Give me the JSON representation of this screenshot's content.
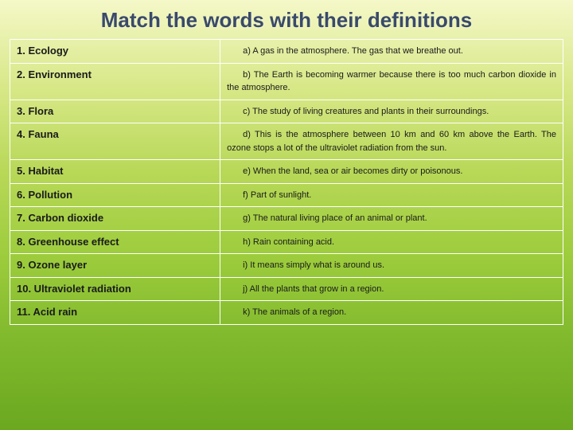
{
  "title": "Match the words with their definitions",
  "rows": [
    {
      "term": "1. Ecology",
      "def": "a) A gas in the atmosphere. The gas that we breathe out."
    },
    {
      "term": "2. Environment",
      "def": "b) The Earth is becoming warmer because there is too much carbon dioxide in the atmosphere."
    },
    {
      "term": "3. Flora",
      "def": "c) The study of living creatures and plants in their surroundings."
    },
    {
      "term": "4. Fauna",
      "def": "d) This is the atmosphere between 10 km and 60 km above the Earth. The ozone stops a lot of the ultraviolet radiation from the sun."
    },
    {
      "term": "5. Habitat",
      "def": "e) When the land, sea or air becomes dirty or poisonous."
    },
    {
      "term": "6. Pollution",
      "def": "f) Part of sunlight."
    },
    {
      "term": "7. Carbon dioxide",
      "def": "g) The natural living place of an animal or plant."
    },
    {
      "term": "8. Greenhouse effect",
      "def": "h) Rain containing acid."
    },
    {
      "term": "9. Ozone layer",
      "def": "i) It means simply what is around us."
    },
    {
      "term": "10. Ultraviolet radiation",
      "def": "j) All the plants that grow in a region."
    },
    {
      "term": "11. Acid rain",
      "def": "k) The animals of a region."
    }
  ]
}
